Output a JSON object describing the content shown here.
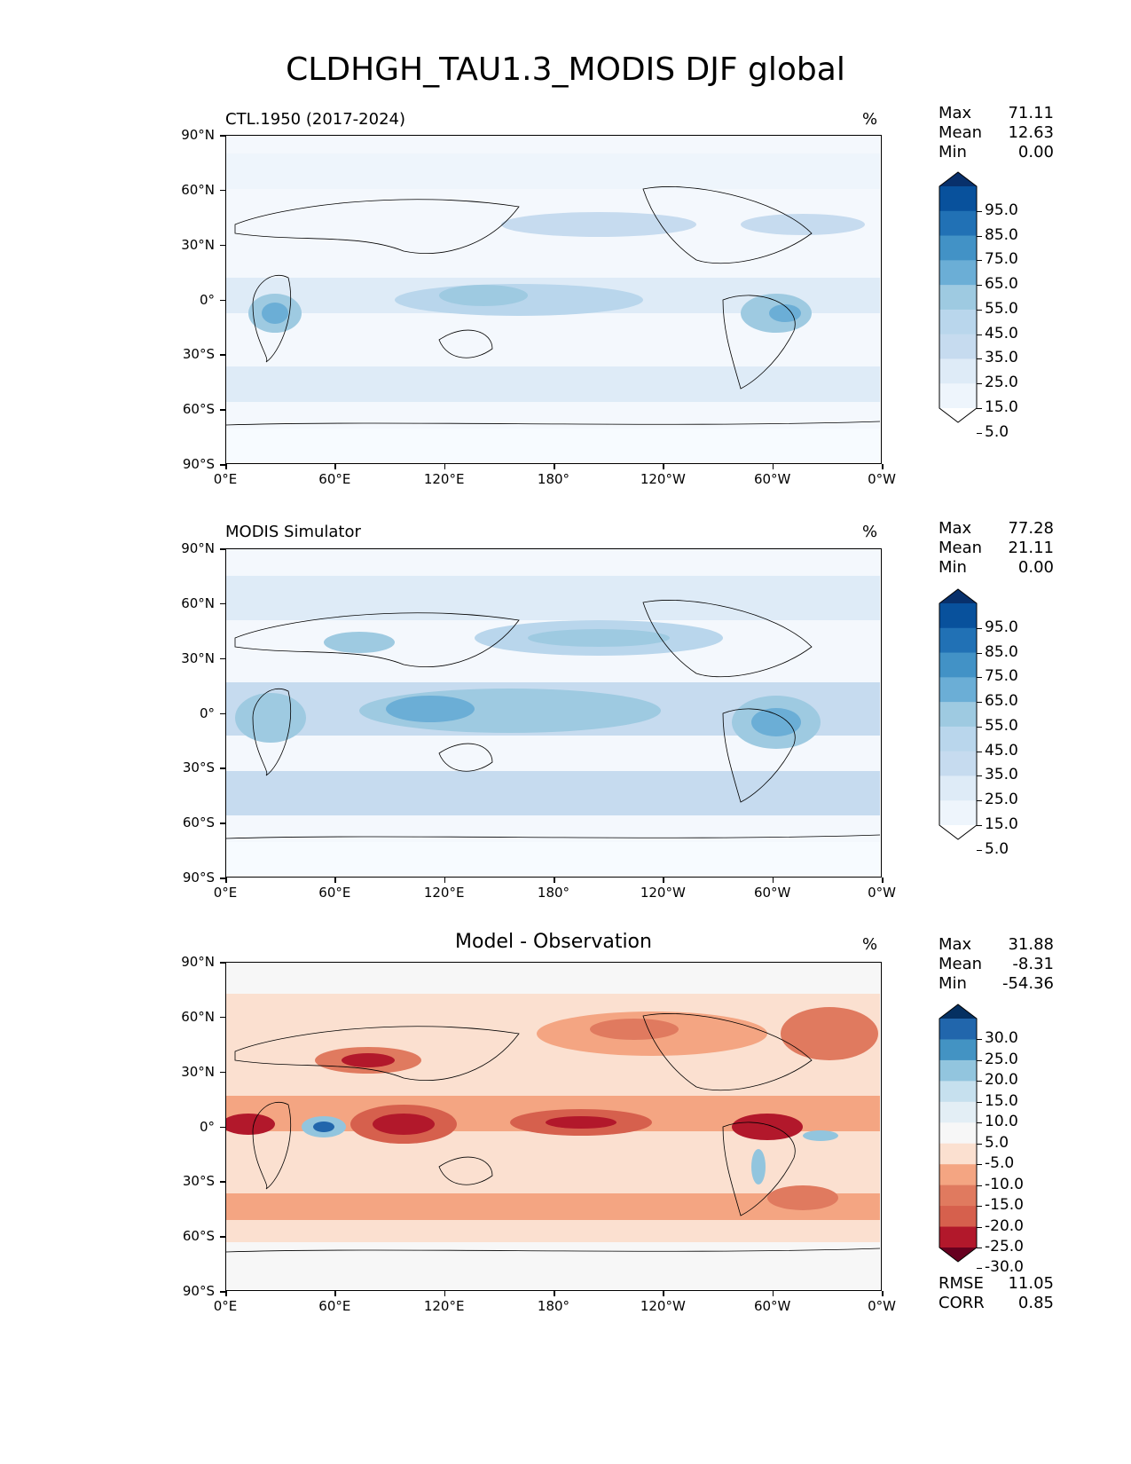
{
  "figure_title": "CLDHGH_TAU1.3_MODIS DJF global",
  "lat_labels": [
    "90°N",
    "60°N",
    "30°N",
    "0°",
    "30°S",
    "60°S",
    "90°S"
  ],
  "lon_labels": [
    "0°E",
    "60°E",
    "120°E",
    "180°",
    "120°W",
    "60°W",
    "0°W"
  ],
  "panels": [
    {
      "subtitle": "CTL.1950 (2017-2024)",
      "center_title": "",
      "unit": "%",
      "stats": {
        "max_label": "Max",
        "max": "71.11",
        "mean_label": "Mean",
        "mean": "12.63",
        "min_label": "Min",
        "min": "0.00"
      },
      "colorbar": {
        "labels": [
          "95.0",
          "85.0",
          "75.0",
          "65.0",
          "55.0",
          "45.0",
          "35.0",
          "25.0",
          "15.0",
          "5.0"
        ],
        "colors": [
          "#08306b",
          "#08519c",
          "#2171b5",
          "#4292c6",
          "#6baed6",
          "#9ecae1",
          "#b9d6ec",
          "#c6dbef",
          "#deebf7",
          "#eef5fc",
          "#ffffff"
        ]
      }
    },
    {
      "subtitle": "MODIS Simulator",
      "center_title": "",
      "unit": "%",
      "stats": {
        "max_label": "Max",
        "max": "77.28",
        "mean_label": "Mean",
        "mean": "21.11",
        "min_label": "Min",
        "min": "0.00"
      },
      "colorbar": {
        "labels": [
          "95.0",
          "85.0",
          "75.0",
          "65.0",
          "55.0",
          "45.0",
          "35.0",
          "25.0",
          "15.0",
          "5.0"
        ],
        "colors": [
          "#08306b",
          "#08519c",
          "#2171b5",
          "#4292c6",
          "#6baed6",
          "#9ecae1",
          "#b9d6ec",
          "#c6dbef",
          "#deebf7",
          "#eef5fc",
          "#ffffff"
        ]
      }
    },
    {
      "subtitle": "",
      "center_title": "Model - Observation",
      "unit": "%",
      "stats": {
        "max_label": "Max",
        "max": "31.88",
        "mean_label": "Mean",
        "mean": "-8.31",
        "min_label": "Min",
        "min": "-54.36"
      },
      "colorbar": {
        "labels": [
          "30.0",
          "25.0",
          "20.0",
          "15.0",
          "10.0",
          "5.0",
          "-5.0",
          "-10.0",
          "-15.0",
          "-20.0",
          "-25.0",
          "-30.0"
        ],
        "colors": [
          "#053061",
          "#2166ac",
          "#4393c3",
          "#92c5de",
          "#c6e0ee",
          "#e3eef5",
          "#f7f7f7",
          "#fbe0d0",
          "#f4a582",
          "#e07a5f",
          "#d6604d",
          "#b2182b",
          "#67001f"
        ]
      },
      "metrics": {
        "rmse_label": "RMSE",
        "rmse": "11.05",
        "corr_label": "CORR",
        "corr": "0.85"
      }
    }
  ]
}
